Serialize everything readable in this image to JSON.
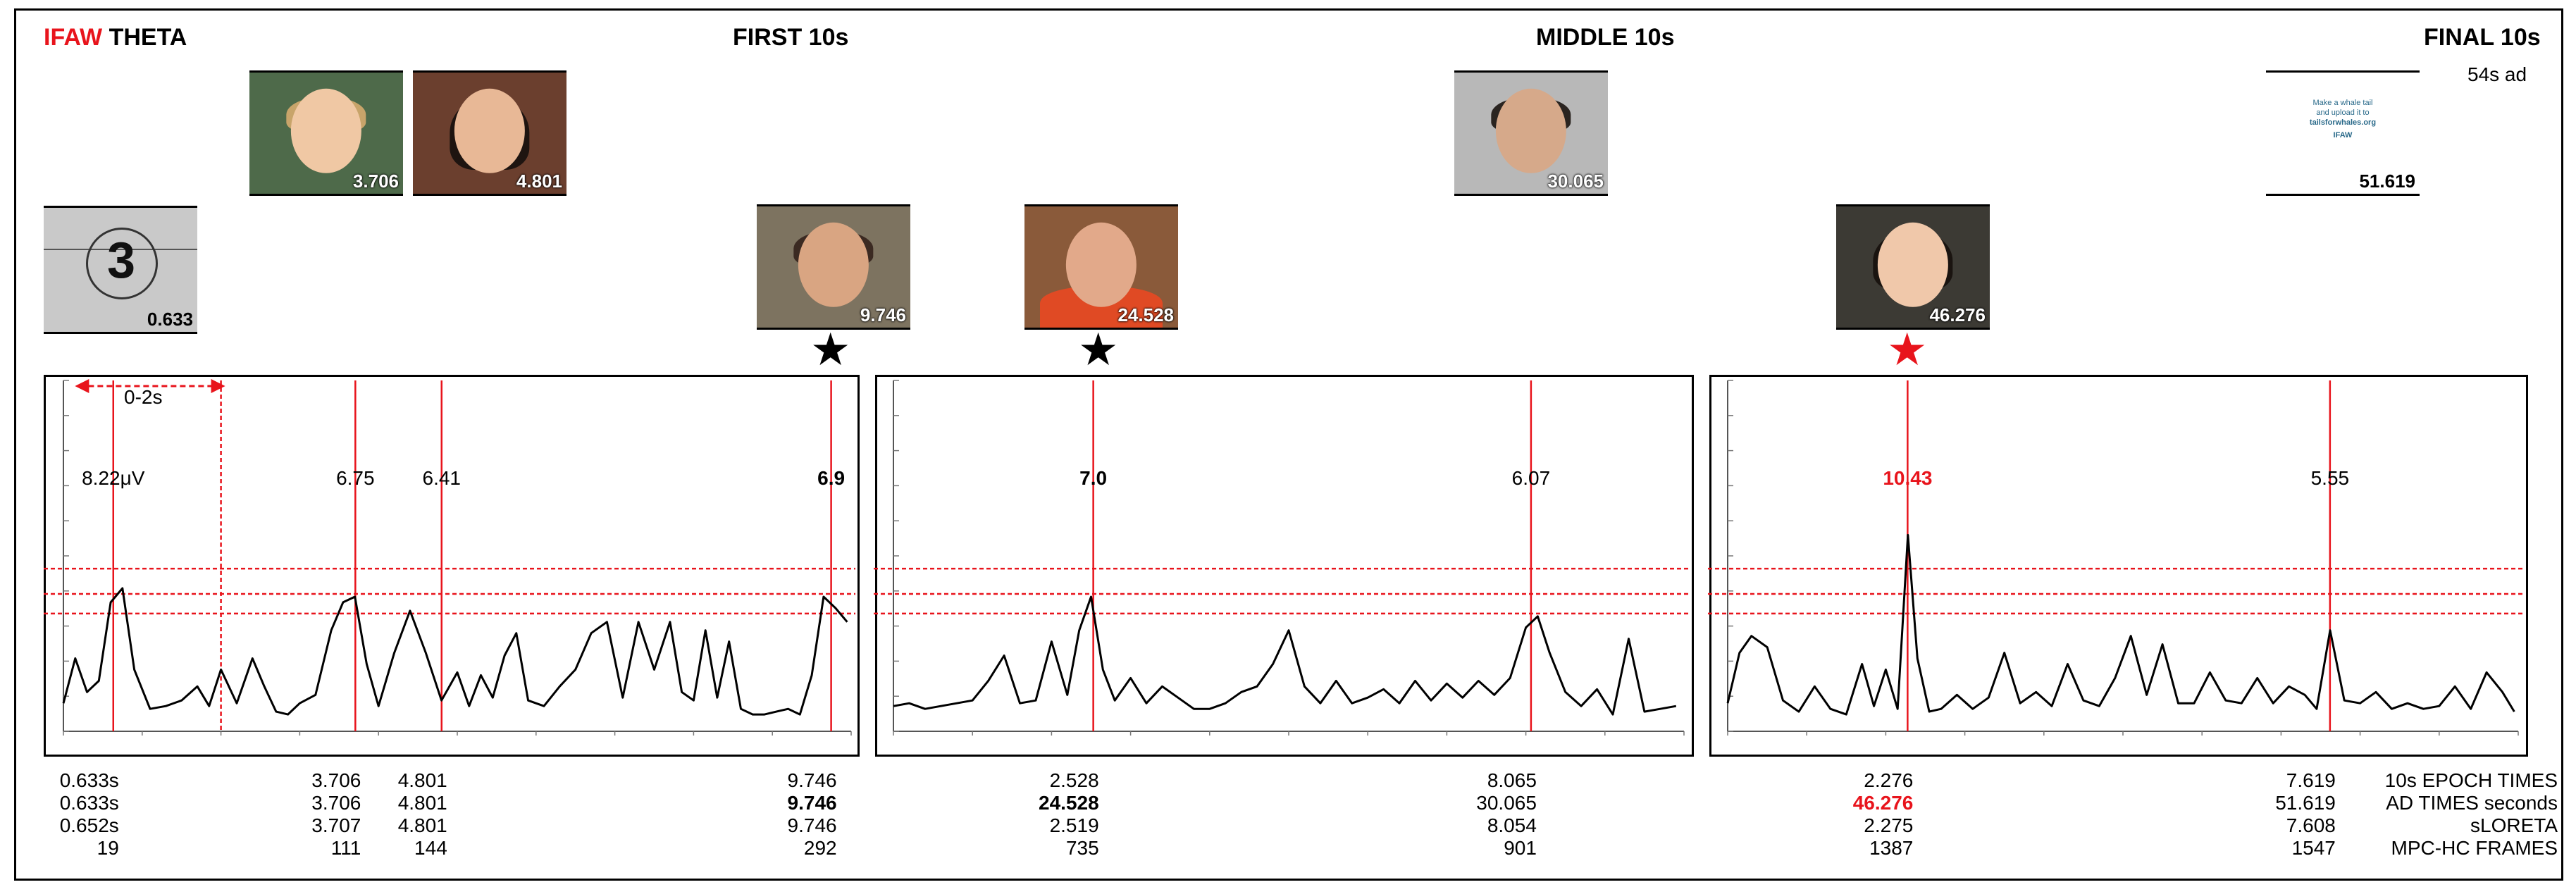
{
  "header": {
    "brand": "IFAW",
    "brand_color": "#e8141c",
    "band": "THETA",
    "first_label": "FIRST 10s",
    "middle_label": "MIDDLE 10s",
    "final_label": "FINAL 10s",
    "ad_length": "54s ad"
  },
  "thumbnails": [
    {
      "label": "0.633",
      "icon": "countdown-leader-3",
      "digit": "3"
    },
    {
      "label": "3.706",
      "icon": "child-photo"
    },
    {
      "label": "4.801",
      "icon": "woman-photo"
    },
    {
      "label": "9.746",
      "icon": "bearded-man-photo"
    },
    {
      "label": "24.528",
      "icon": "bald-man-photo"
    },
    {
      "label": "30.065",
      "icon": "smiling-man-photo"
    },
    {
      "label": "46.276",
      "icon": "woman-photo"
    },
    {
      "label": "51.619",
      "icon": "end-card",
      "lines": [
        "Make a whale tail",
        "and upload it to",
        "tailsforwhales.org",
        "IFAW"
      ]
    }
  ],
  "stars": [
    {
      "color": "#000000"
    },
    {
      "color": "#000000"
    },
    {
      "color": "#e8141c"
    }
  ],
  "range_label": "0-2s",
  "colors": {
    "marker": "#e8141c",
    "trace": "#000000",
    "highlight": "#e8141c"
  },
  "chart_data": [
    {
      "type": "line",
      "title": "FIRST 10s",
      "xlim": [
        0,
        10
      ],
      "ylim": [
        0,
        10
      ],
      "peaks": [
        {
          "x": 0.633,
          "label": "8.22μV",
          "bold": false
        },
        {
          "x": 3.706,
          "label": "6.75",
          "bold": false
        },
        {
          "x": 4.801,
          "label": "6.41",
          "bold": false
        },
        {
          "x": 9.746,
          "label": "6.9",
          "bold": true
        }
      ],
      "x": [
        0,
        0.15,
        0.3,
        0.45,
        0.6,
        0.75,
        0.9,
        1.1,
        1.3,
        1.5,
        1.7,
        1.85,
        2.0,
        2.2,
        2.4,
        2.55,
        2.7,
        2.85,
        3.0,
        3.2,
        3.4,
        3.55,
        3.7,
        3.85,
        4.0,
        4.2,
        4.4,
        4.6,
        4.8,
        5.0,
        5.15,
        5.3,
        5.45,
        5.6,
        5.75,
        5.9,
        6.1,
        6.3,
        6.5,
        6.7,
        6.9,
        7.1,
        7.3,
        7.5,
        7.7,
        7.85,
        8.0,
        8.15,
        8.3,
        8.45,
        8.6,
        8.75,
        8.9,
        9.05,
        9.2,
        9.35,
        9.5,
        9.65,
        9.8,
        9.95
      ],
      "y": [
        1.0,
        2.6,
        1.4,
        1.8,
        4.6,
        5.1,
        2.2,
        0.8,
        0.9,
        1.1,
        1.6,
        0.9,
        2.2,
        1.0,
        2.6,
        1.6,
        0.7,
        0.6,
        1.0,
        1.3,
        3.6,
        4.6,
        4.8,
        2.4,
        0.9,
        2.8,
        4.3,
        2.8,
        1.1,
        2.1,
        0.9,
        2.0,
        1.2,
        2.7,
        3.5,
        1.1,
        0.9,
        1.6,
        2.2,
        3.5,
        3.9,
        1.2,
        3.9,
        2.2,
        3.9,
        1.4,
        1.1,
        3.6,
        1.2,
        3.2,
        0.8,
        0.6,
        0.6,
        0.7,
        0.8,
        0.6,
        2.0,
        4.8,
        4.4,
        3.9
      ],
      "hlines": [
        5.8,
        4.9,
        4.2
      ],
      "vlines": [
        0.633,
        2.0,
        3.706,
        4.801,
        9.746
      ],
      "vline_styles": [
        "solid",
        "dashed",
        "solid",
        "solid",
        "solid"
      ]
    },
    {
      "type": "line",
      "title": "MIDDLE 10s",
      "xlim": [
        0,
        10
      ],
      "ylim": [
        0,
        10
      ],
      "peaks": [
        {
          "x": 2.528,
          "label": "7.0",
          "bold": true
        },
        {
          "x": 8.065,
          "label": "6.07",
          "bold": false
        }
      ],
      "x": [
        0,
        0.2,
        0.4,
        0.6,
        0.8,
        1.0,
        1.2,
        1.4,
        1.6,
        1.8,
        2.0,
        2.2,
        2.35,
        2.5,
        2.65,
        2.8,
        3.0,
        3.2,
        3.4,
        3.6,
        3.8,
        4.0,
        4.2,
        4.4,
        4.6,
        4.8,
        5.0,
        5.2,
        5.4,
        5.6,
        5.8,
        6.0,
        6.2,
        6.4,
        6.6,
        6.8,
        7.0,
        7.2,
        7.4,
        7.6,
        7.8,
        8.0,
        8.15,
        8.3,
        8.5,
        8.7,
        8.9,
        9.1,
        9.3,
        9.5,
        9.7,
        9.9
      ],
      "y": [
        0.9,
        1.0,
        0.8,
        0.9,
        1.0,
        1.1,
        1.8,
        2.7,
        1.0,
        1.1,
        3.2,
        1.3,
        3.6,
        4.8,
        2.2,
        1.1,
        1.9,
        1.0,
        1.6,
        1.2,
        0.8,
        0.8,
        1.0,
        1.4,
        1.6,
        2.4,
        3.6,
        1.6,
        1.0,
        1.8,
        1.0,
        1.2,
        1.5,
        1.0,
        1.8,
        1.1,
        1.7,
        1.2,
        1.8,
        1.3,
        1.9,
        3.7,
        4.1,
        2.8,
        1.4,
        0.9,
        1.5,
        0.6,
        3.3,
        0.7,
        0.8,
        0.9
      ],
      "hlines": [
        5.8,
        4.9,
        4.2
      ],
      "vlines": [
        2.528,
        8.065
      ],
      "vline_styles": [
        "solid",
        "solid"
      ]
    },
    {
      "type": "line",
      "title": "FINAL 10s",
      "xlim": [
        0,
        10
      ],
      "ylim": [
        0,
        10
      ],
      "peaks": [
        {
          "x": 2.276,
          "label": "10.43",
          "bold": true,
          "highlight": true
        },
        {
          "x": 7.619,
          "label": "5.55",
          "bold": false
        }
      ],
      "x": [
        0,
        0.15,
        0.3,
        0.5,
        0.7,
        0.9,
        1.1,
        1.3,
        1.5,
        1.7,
        1.85,
        2.0,
        2.15,
        2.28,
        2.4,
        2.55,
        2.7,
        2.9,
        3.1,
        3.3,
        3.5,
        3.7,
        3.9,
        4.1,
        4.3,
        4.5,
        4.7,
        4.9,
        5.1,
        5.3,
        5.5,
        5.7,
        5.9,
        6.1,
        6.3,
        6.5,
        6.7,
        6.9,
        7.1,
        7.3,
        7.45,
        7.62,
        7.8,
        8.0,
        8.2,
        8.4,
        8.6,
        8.8,
        9.0,
        9.2,
        9.4,
        9.6,
        9.8,
        9.95
      ],
      "y": [
        1.0,
        2.8,
        3.4,
        3.0,
        1.1,
        0.7,
        1.6,
        0.8,
        0.6,
        2.4,
        0.9,
        2.2,
        0.8,
        7.0,
        2.6,
        0.7,
        0.8,
        1.3,
        0.8,
        1.2,
        2.8,
        1.0,
        1.4,
        0.9,
        2.4,
        1.1,
        0.9,
        1.9,
        3.4,
        1.3,
        3.1,
        1.0,
        1.0,
        2.1,
        1.1,
        1.0,
        1.9,
        1.0,
        1.6,
        1.3,
        0.8,
        3.6,
        1.1,
        1.0,
        1.4,
        0.8,
        1.0,
        0.8,
        0.9,
        1.6,
        0.8,
        2.1,
        1.4,
        0.7
      ],
      "hlines": [
        5.8,
        4.9,
        4.2
      ],
      "vlines": [
        2.276,
        7.619
      ],
      "vline_styles": [
        "solid",
        "solid"
      ]
    }
  ],
  "table": {
    "row_labels": [
      "10s EPOCH TIMES",
      "AD TIMES seconds",
      "sLORETA",
      "MPC-HC FRAMES"
    ],
    "columns": [
      {
        "panel": 0,
        "x": 0.633,
        "values": [
          "0.633s",
          "0.633s",
          "0.652s",
          "19"
        ],
        "bold_row": -1,
        "red_row": -1
      },
      {
        "panel": 0,
        "x": 3.706,
        "values": [
          "3.706",
          "3.706",
          "3.707",
          "111"
        ],
        "bold_row": -1,
        "red_row": -1
      },
      {
        "panel": 0,
        "x": 4.801,
        "values": [
          "4.801",
          "4.801",
          "4.801",
          "144"
        ],
        "bold_row": -1,
        "red_row": -1
      },
      {
        "panel": 0,
        "x": 9.746,
        "values": [
          "9.746",
          "9.746",
          "9.746",
          "292"
        ],
        "bold_row": 1,
        "red_row": -1
      },
      {
        "panel": 1,
        "x": 2.528,
        "values": [
          "2.528",
          "24.528",
          "2.519",
          "735"
        ],
        "bold_row": 1,
        "red_row": -1
      },
      {
        "panel": 1,
        "x": 8.065,
        "values": [
          "8.065",
          "30.065",
          "8.054",
          "901"
        ],
        "bold_row": -1,
        "red_row": -1
      },
      {
        "panel": 2,
        "x": 2.276,
        "values": [
          "2.276",
          "46.276",
          "2.275",
          "1387"
        ],
        "bold_row": 1,
        "red_row": 1
      },
      {
        "panel": 2,
        "x": 7.619,
        "values": [
          "7.619",
          "51.619",
          "7.608",
          "1547"
        ],
        "bold_row": -1,
        "red_row": -1
      }
    ]
  }
}
